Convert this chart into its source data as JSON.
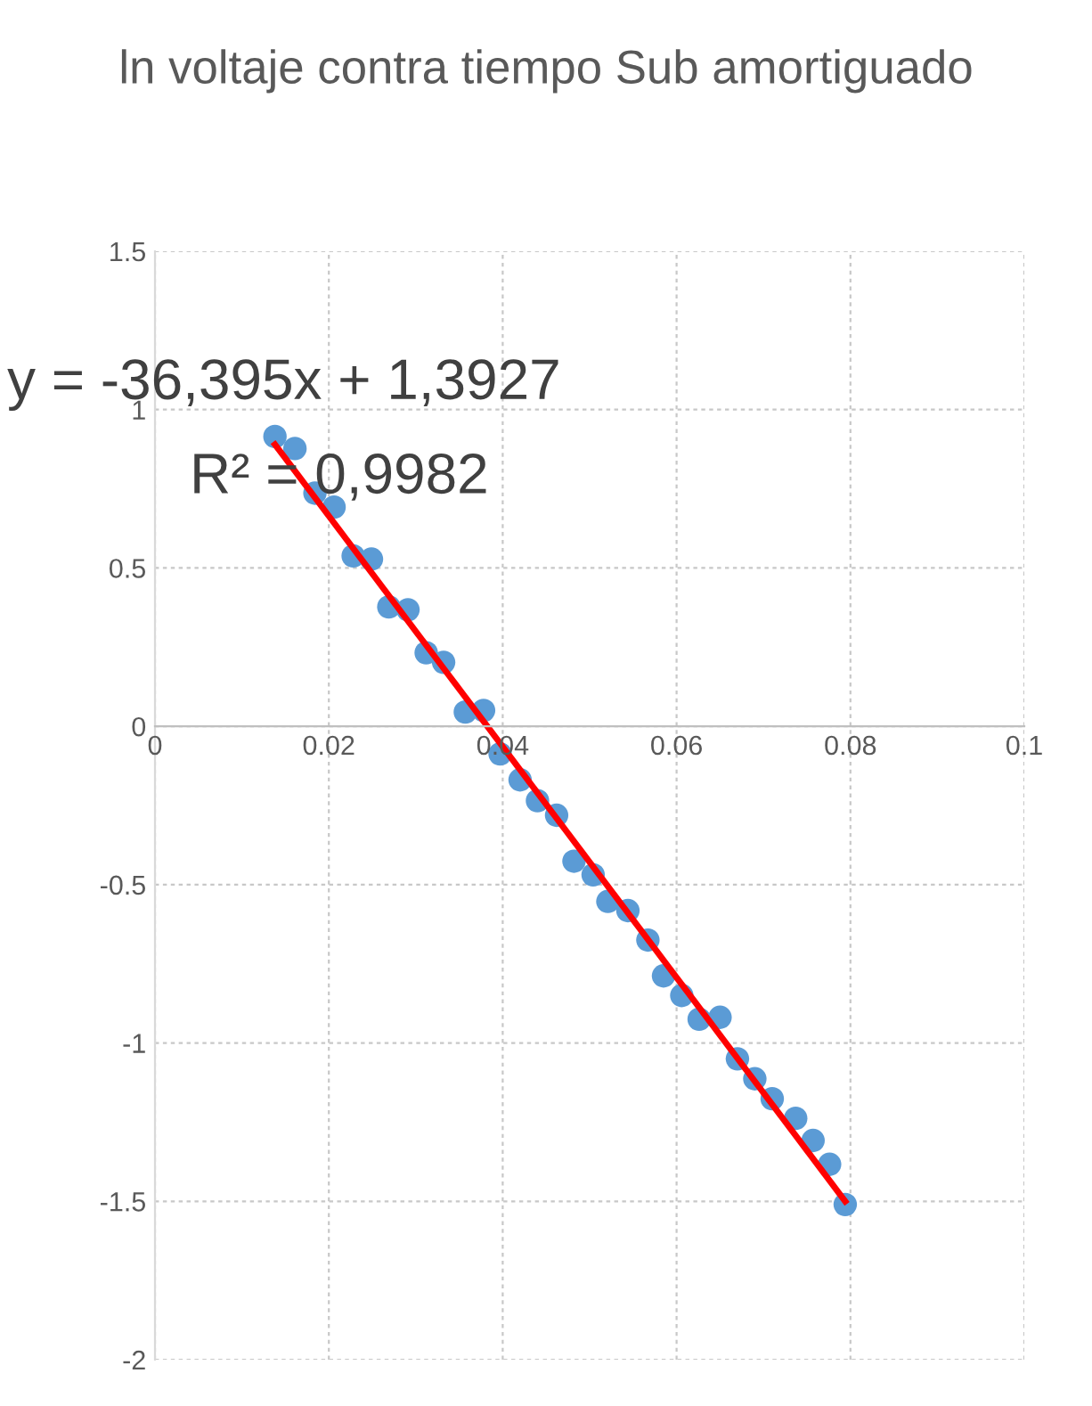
{
  "chart_data": {
    "type": "scatter",
    "title": "ln voltaje contra tiempo Sub amortiguado",
    "xlim": [
      0,
      0.1
    ],
    "xticks": [
      0,
      0.02,
      0.04,
      0.06,
      0.08,
      0.1
    ],
    "ylim": [
      -2,
      1.5
    ],
    "yticks": [
      -2,
      -1.5,
      -1,
      -0.5,
      0,
      0.5,
      1,
      1.5
    ],
    "grid": true,
    "series": [
      {
        "color": "#5b9bd5",
        "marker": "circle",
        "x": [
          0.0138,
          0.0161,
          0.0184,
          0.0206,
          0.0228,
          0.0249,
          0.0269,
          0.0291,
          0.0312,
          0.0332,
          0.0357,
          0.0378,
          0.0397,
          0.042,
          0.044,
          0.0462,
          0.0482,
          0.0504,
          0.0521,
          0.0544,
          0.0567,
          0.0585,
          0.0606,
          0.0626,
          0.065,
          0.067,
          0.069,
          0.071,
          0.0737,
          0.0757,
          0.0776,
          0.0794
        ],
        "values": [
          0.915,
          0.877,
          0.736,
          0.692,
          0.538,
          0.528,
          0.377,
          0.368,
          0.232,
          0.202,
          0.045,
          0.05,
          -0.087,
          -0.169,
          -0.235,
          -0.281,
          -0.426,
          -0.469,
          -0.553,
          -0.582,
          -0.675,
          -0.788,
          -0.85,
          -0.925,
          -0.919,
          -1.05,
          -1.113,
          -1.176,
          -1.238,
          -1.308,
          -1.383,
          -1.51
        ]
      },
      {
        "type": "line",
        "color": "#ff0000",
        "x": [
          0.0138,
          0.0794
        ],
        "values": [
          0.89,
          -1.5
        ]
      }
    ],
    "annotations": [
      "y = -36,395x + 1,3927",
      "R² = 0,9982"
    ]
  }
}
